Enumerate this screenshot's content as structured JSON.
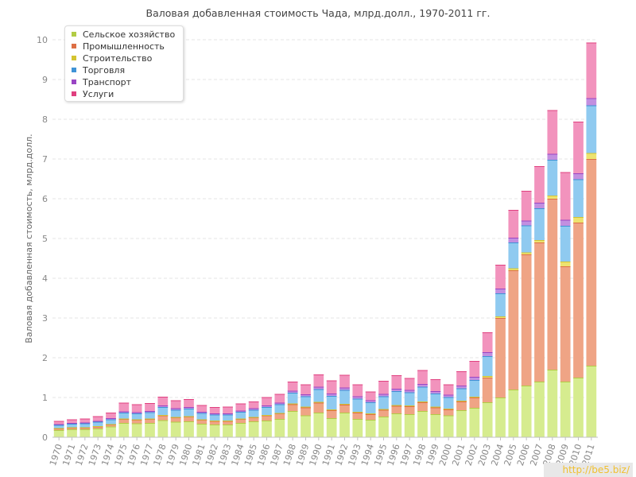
{
  "chart_data": {
    "type": "bar",
    "stacked": true,
    "title": "Валовая добавленная стоимость Чада, млрд.долл., 1970-2011 гг.",
    "xlabel": "",
    "ylabel": "Валовая добавленная стоимость, млрд.долл.",
    "ylim": [
      0,
      10
    ],
    "yticks": [
      "0",
      "1",
      "2",
      "3",
      "4",
      "5",
      "6",
      "7",
      "8",
      "9",
      "10"
    ],
    "grid": true,
    "legend_position": "top-left",
    "categories": [
      "1970",
      "1971",
      "1972",
      "1973",
      "1974",
      "1975",
      "1976",
      "1977",
      "1978",
      "1979",
      "1980",
      "1981",
      "1982",
      "1983",
      "1984",
      "1985",
      "1986",
      "1987",
      "1988",
      "1989",
      "1990",
      "1991",
      "1992",
      "1993",
      "1994",
      "1995",
      "1996",
      "1997",
      "1998",
      "1999",
      "2000",
      "2001",
      "2002",
      "2003",
      "2004",
      "2005",
      "2006",
      "2007",
      "2008",
      "2009",
      "2010",
      "2011"
    ],
    "series": [
      {
        "name": "Сельское хозяйство",
        "color": "#d6ec8f",
        "edge": "#b2cc45",
        "values": [
          0.18,
          0.2,
          0.2,
          0.22,
          0.27,
          0.36,
          0.35,
          0.36,
          0.43,
          0.39,
          0.4,
          0.34,
          0.32,
          0.32,
          0.36,
          0.4,
          0.42,
          0.46,
          0.66,
          0.55,
          0.62,
          0.48,
          0.62,
          0.46,
          0.44,
          0.52,
          0.6,
          0.58,
          0.66,
          0.58,
          0.55,
          0.68,
          0.74,
          0.88,
          1.0,
          1.2,
          1.3,
          1.4,
          1.7,
          1.4,
          1.5,
          1.8
        ]
      },
      {
        "name": "Промышленность",
        "color": "#efa485",
        "edge": "#dd6f45",
        "values": [
          0.04,
          0.04,
          0.04,
          0.05,
          0.05,
          0.1,
          0.09,
          0.1,
          0.12,
          0.11,
          0.12,
          0.1,
          0.09,
          0.09,
          0.1,
          0.1,
          0.13,
          0.14,
          0.17,
          0.2,
          0.25,
          0.2,
          0.2,
          0.16,
          0.14,
          0.17,
          0.19,
          0.2,
          0.22,
          0.17,
          0.15,
          0.22,
          0.26,
          0.62,
          2.0,
          3.0,
          3.3,
          3.5,
          4.3,
          2.9,
          3.9,
          5.2
        ]
      },
      {
        "name": "Строительство",
        "color": "#ede36f",
        "edge": "#d4c431",
        "values": [
          0.01,
          0.01,
          0.01,
          0.01,
          0.01,
          0.01,
          0.01,
          0.01,
          0.01,
          0.01,
          0.01,
          0.01,
          0.01,
          0.01,
          0.01,
          0.01,
          0.01,
          0.01,
          0.02,
          0.02,
          0.02,
          0.02,
          0.02,
          0.02,
          0.02,
          0.02,
          0.02,
          0.02,
          0.02,
          0.02,
          0.02,
          0.02,
          0.02,
          0.04,
          0.04,
          0.05,
          0.05,
          0.06,
          0.08,
          0.12,
          0.14,
          0.15
        ]
      },
      {
        "name": "Торговля",
        "color": "#8fcaf0",
        "edge": "#3f93d6",
        "values": [
          0.08,
          0.09,
          0.1,
          0.11,
          0.12,
          0.15,
          0.15,
          0.16,
          0.2,
          0.18,
          0.19,
          0.16,
          0.15,
          0.15,
          0.17,
          0.18,
          0.2,
          0.22,
          0.27,
          0.26,
          0.32,
          0.34,
          0.35,
          0.33,
          0.28,
          0.32,
          0.35,
          0.33,
          0.37,
          0.33,
          0.29,
          0.31,
          0.42,
          0.5,
          0.58,
          0.65,
          0.68,
          0.8,
          0.9,
          0.9,
          0.95,
          1.2
        ]
      },
      {
        "name": "Транспорт",
        "color": "#c28fe0",
        "edge": "#9a45c4",
        "values": [
          0.02,
          0.02,
          0.02,
          0.02,
          0.03,
          0.03,
          0.03,
          0.03,
          0.04,
          0.04,
          0.04,
          0.03,
          0.03,
          0.03,
          0.03,
          0.04,
          0.04,
          0.04,
          0.05,
          0.05,
          0.06,
          0.06,
          0.06,
          0.06,
          0.05,
          0.06,
          0.06,
          0.06,
          0.07,
          0.06,
          0.06,
          0.07,
          0.08,
          0.1,
          0.12,
          0.12,
          0.12,
          0.14,
          0.15,
          0.15,
          0.15,
          0.18
        ]
      },
      {
        "name": "Услуги",
        "color": "#f293bd",
        "edge": "#e0407f",
        "values": [
          0.08,
          0.09,
          0.1,
          0.12,
          0.14,
          0.22,
          0.2,
          0.2,
          0.22,
          0.2,
          0.2,
          0.17,
          0.16,
          0.17,
          0.18,
          0.17,
          0.21,
          0.22,
          0.23,
          0.25,
          0.31,
          0.33,
          0.32,
          0.3,
          0.22,
          0.33,
          0.34,
          0.3,
          0.35,
          0.3,
          0.26,
          0.36,
          0.4,
          0.5,
          0.6,
          0.7,
          0.75,
          0.92,
          1.1,
          1.2,
          1.3,
          1.4
        ]
      }
    ]
  },
  "watermark": "http://be5.biz/"
}
